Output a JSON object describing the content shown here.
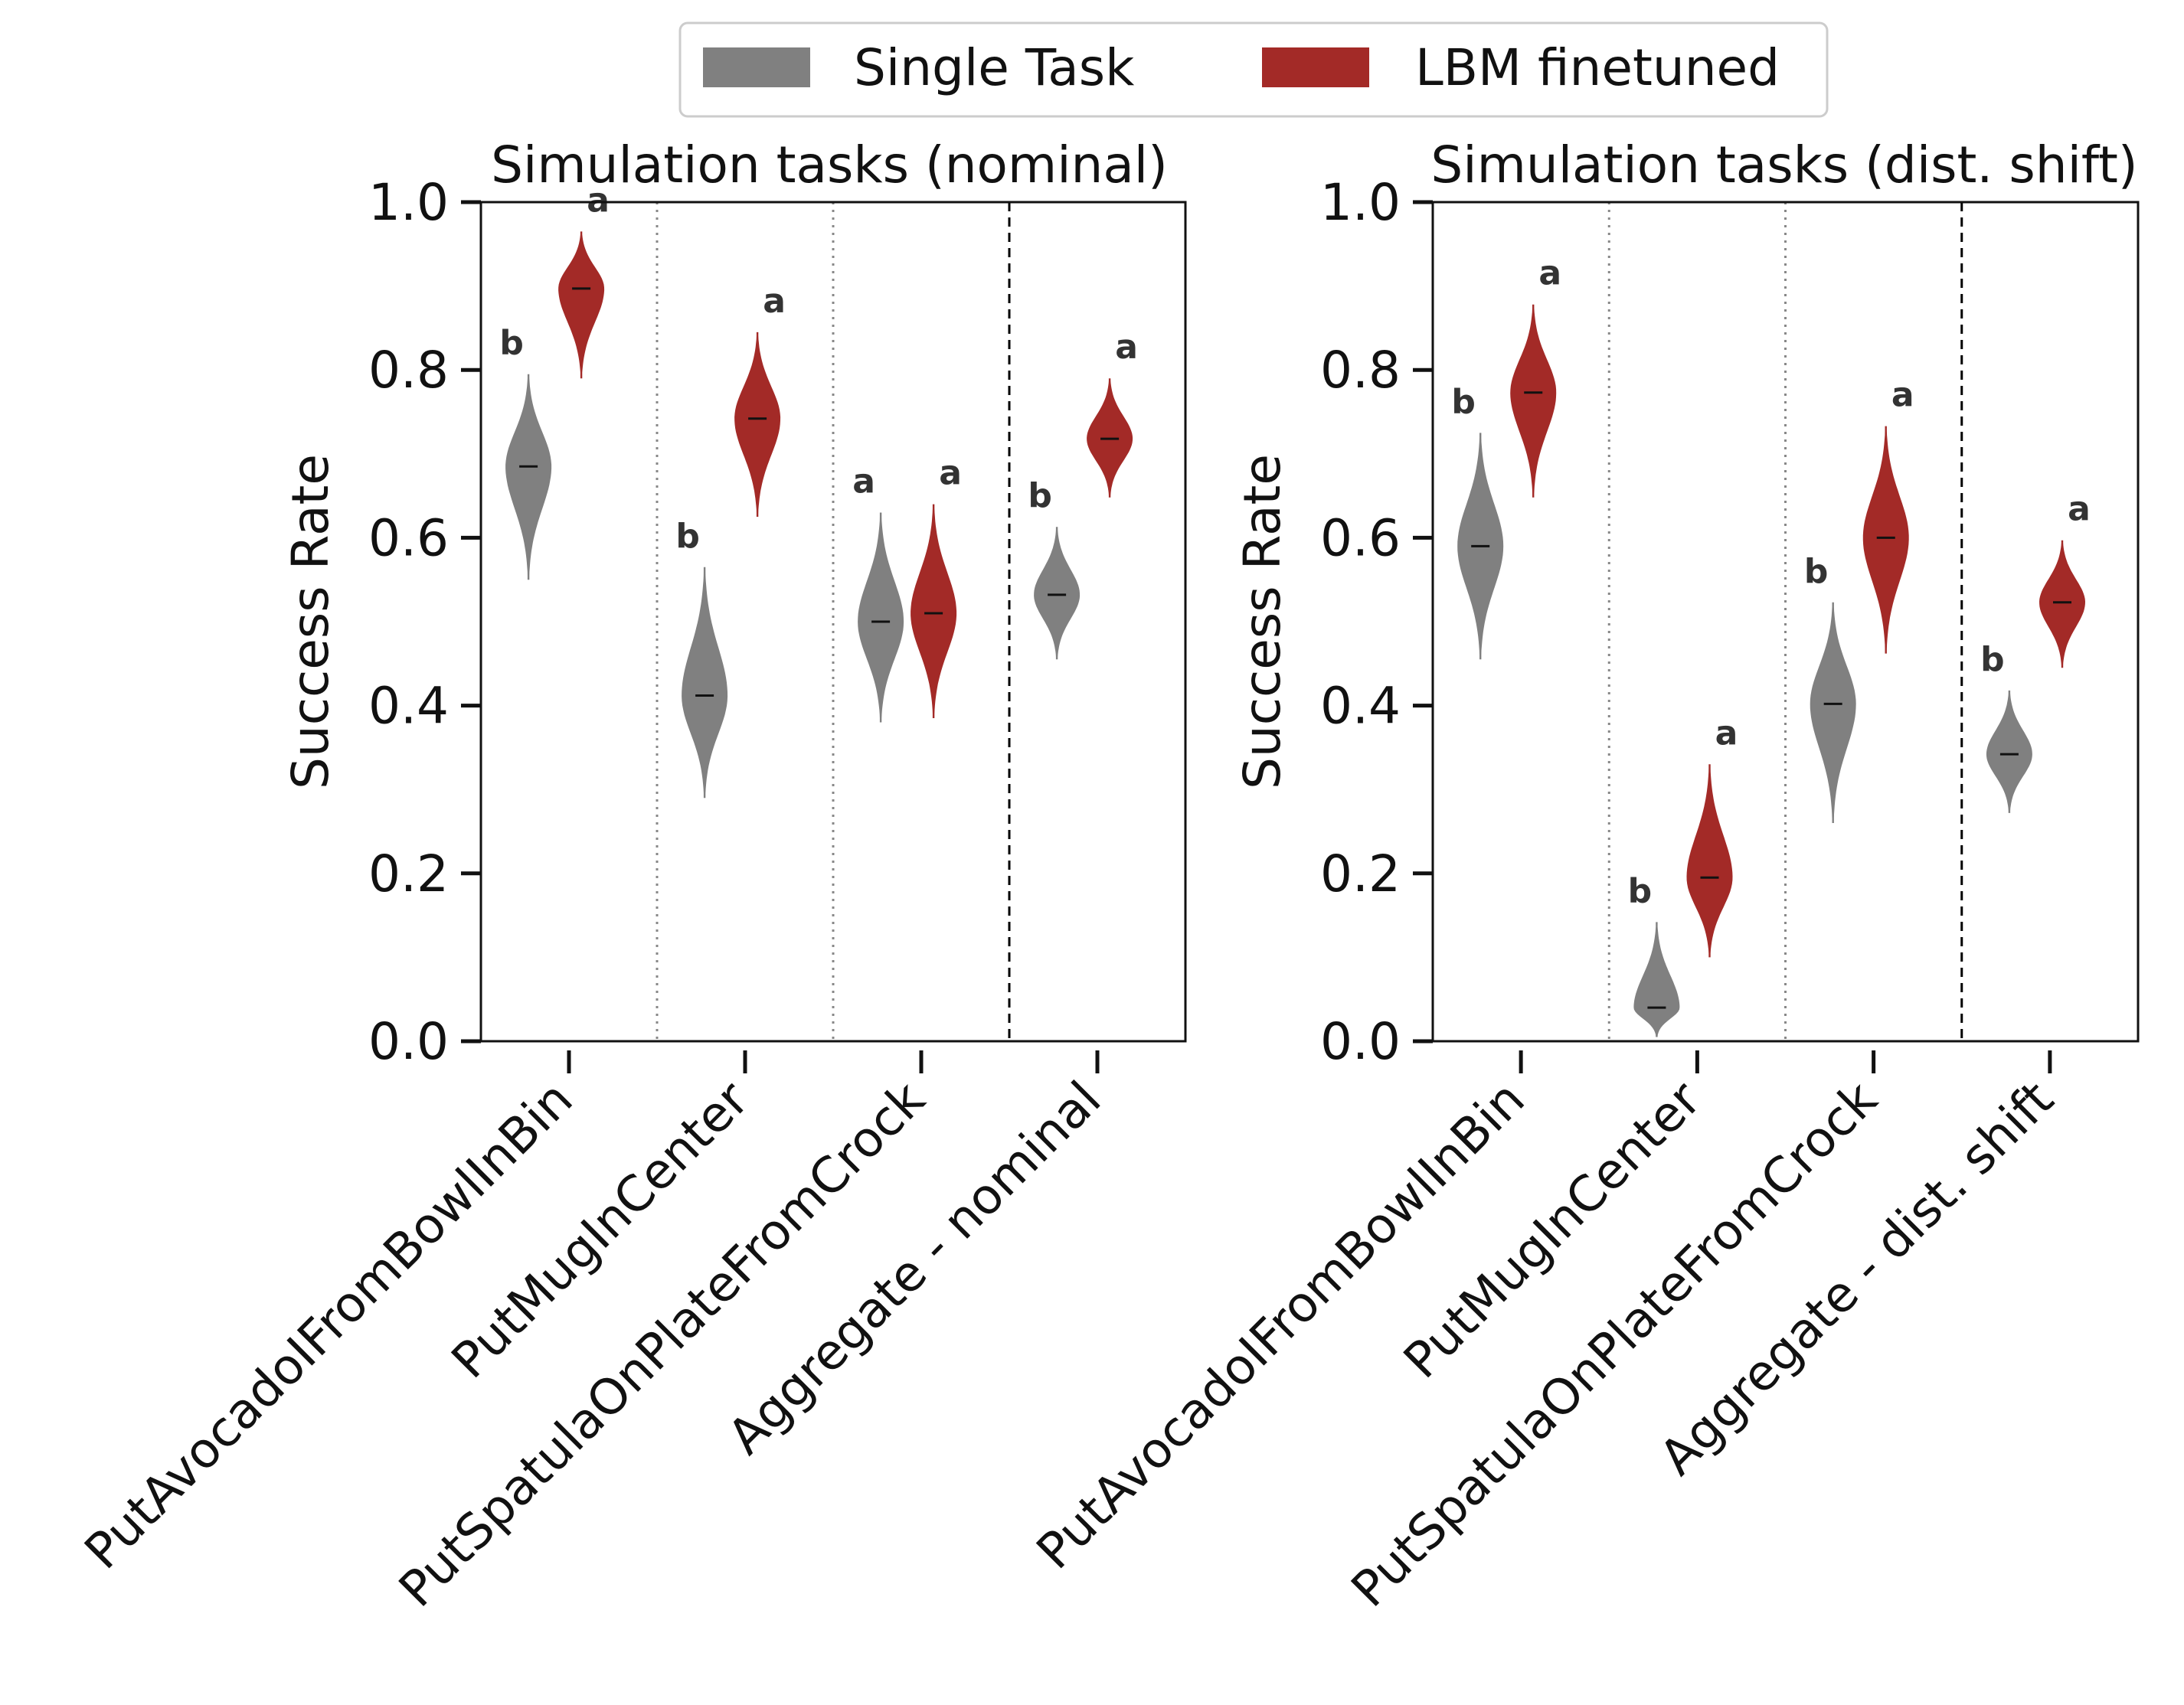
{
  "legend": [
    {
      "label": "Single Task",
      "color": "#808080"
    },
    {
      "label": "LBM finetuned",
      "color": "#a32a27"
    }
  ],
  "chart_data": [
    {
      "type": "violin",
      "title": "Simulation tasks (nominal)",
      "xlabel": "",
      "ylabel": "Success Rate",
      "ylim": [
        0.0,
        1.0
      ],
      "yticks": [
        "0.0",
        "0.2",
        "0.4",
        "0.6",
        "0.8",
        "1.0"
      ],
      "categories": [
        "PutAvocadoIFromBowlInBin",
        "PutMugInCenter",
        "PutSpatulaOnPlateFromCrock",
        "Aggregate - nominal"
      ],
      "series": [
        {
          "name": "Single Task",
          "color": "#808080",
          "medians": [
            0.685,
            0.412,
            0.5,
            0.532
          ],
          "mins": [
            0.55,
            0.29,
            0.38,
            0.455
          ],
          "maxs": [
            0.795,
            0.565,
            0.63,
            0.613
          ],
          "letters": [
            "b",
            "b",
            "a",
            "b"
          ]
        },
        {
          "name": "LBM finetuned",
          "color": "#a32a27",
          "medians": [
            0.897,
            0.742,
            0.51,
            0.718
          ],
          "mins": [
            0.79,
            0.625,
            0.385,
            0.648
          ],
          "maxs": [
            0.965,
            0.845,
            0.64,
            0.79
          ],
          "letters": [
            "a",
            "a",
            "a",
            "a"
          ]
        }
      ]
    },
    {
      "type": "violin",
      "title": "Simulation tasks (dist. shift)",
      "xlabel": "",
      "ylabel": "Success Rate",
      "ylim": [
        0.0,
        1.0
      ],
      "yticks": [
        "0.0",
        "0.2",
        "0.4",
        "0.6",
        "0.8",
        "1.0"
      ],
      "categories": [
        "PutAvocadoIFromBowlInBin",
        "PutMugInCenter",
        "PutSpatulaOnPlateFromCrock",
        "Aggregate - dist. shift"
      ],
      "series": [
        {
          "name": "Single Task",
          "color": "#808080",
          "medians": [
            0.59,
            0.04,
            0.402,
            0.342
          ],
          "mins": [
            0.455,
            0.005,
            0.26,
            0.272
          ],
          "maxs": [
            0.725,
            0.142,
            0.523,
            0.418
          ],
          "letters": [
            "b",
            "b",
            "b",
            "b"
          ]
        },
        {
          "name": "LBM finetuned",
          "color": "#a32a27",
          "medians": [
            0.773,
            0.195,
            0.6,
            0.523
          ],
          "mins": [
            0.648,
            0.1,
            0.462,
            0.445
          ],
          "maxs": [
            0.878,
            0.33,
            0.733,
            0.597
          ],
          "letters": [
            "a",
            "a",
            "a",
            "a"
          ]
        }
      ]
    }
  ]
}
